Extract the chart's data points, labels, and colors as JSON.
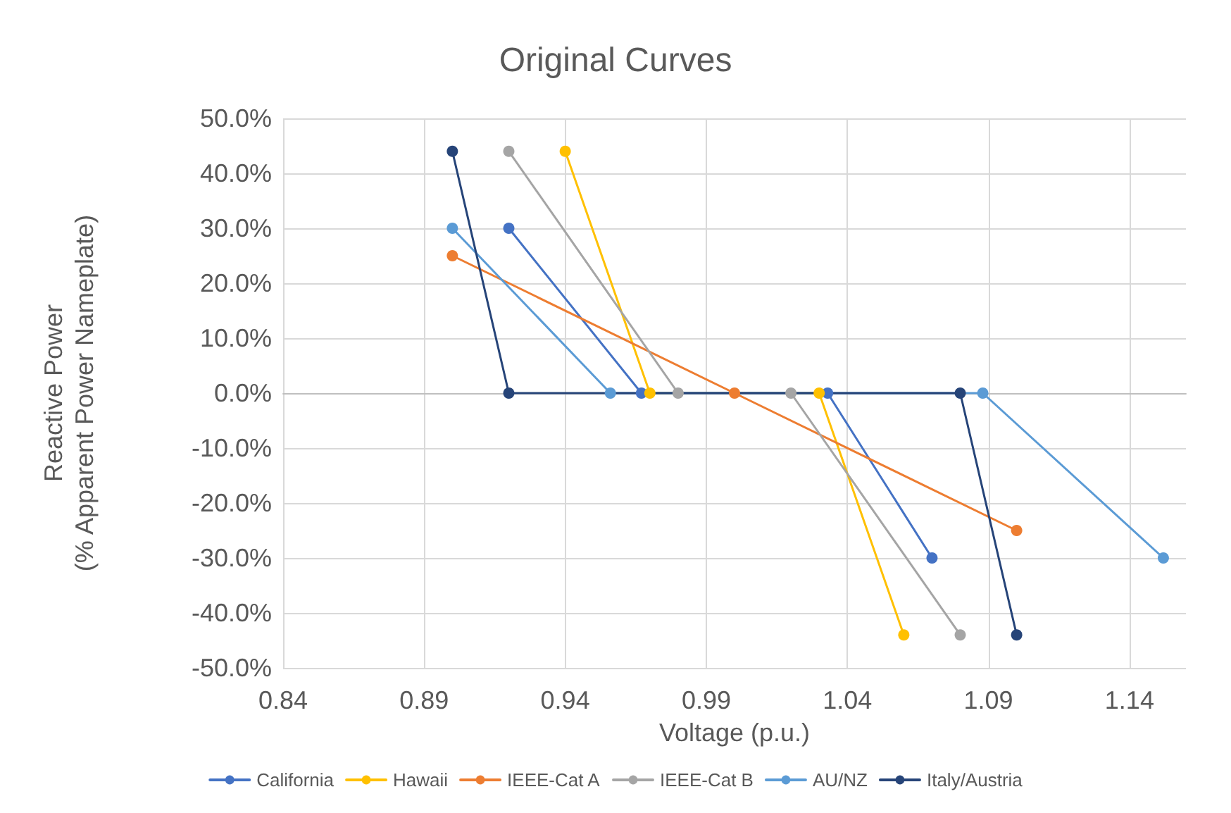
{
  "chart_data": {
    "type": "line",
    "title": "Original Curves",
    "xlabel": "Voltage (p.u.)",
    "ylabel": "Reactive Power\n(% Apparent Power Nameplate)",
    "xlim": [
      0.84,
      1.16
    ],
    "xticks": [
      0.84,
      0.89,
      0.94,
      0.99,
      1.04,
      1.09,
      1.14
    ],
    "ylim": [
      -50,
      50
    ],
    "yticks": [
      {
        "value": -50,
        "label": "-50.0%"
      },
      {
        "value": -40,
        "label": "-40.0%"
      },
      {
        "value": -30,
        "label": "-30.0%"
      },
      {
        "value": -20,
        "label": "-20.0%"
      },
      {
        "value": -10,
        "label": "-10.0%"
      },
      {
        "value": 0,
        "label": "0.0%"
      },
      {
        "value": 10,
        "label": "10.0%"
      },
      {
        "value": 20,
        "label": "20.0%"
      },
      {
        "value": 30,
        "label": "30.0%"
      },
      {
        "value": 40,
        "label": "40.0%"
      },
      {
        "value": 50,
        "label": "50.0%"
      }
    ],
    "grid": true,
    "legend": "bottom",
    "marker": "circle",
    "line_style": "solid",
    "series": [
      {
        "name": "California",
        "color": "#4472c4",
        "x": [
          0.92,
          0.967,
          1.033,
          1.07
        ],
        "values": [
          30,
          0,
          0,
          -30
        ]
      },
      {
        "name": "Hawaii",
        "color": "#ffc000",
        "x": [
          0.94,
          0.97,
          1.03,
          1.06
        ],
        "values": [
          44,
          0,
          0,
          -44
        ]
      },
      {
        "name": "IEEE-Cat A",
        "color": "#ed7d31",
        "x": [
          0.9,
          1.0,
          1.1
        ],
        "values": [
          25,
          0,
          -25
        ]
      },
      {
        "name": "IEEE-Cat B",
        "color": "#a5a5a5",
        "x": [
          0.92,
          0.98,
          1.02,
          1.08
        ],
        "values": [
          44,
          0,
          0,
          -44
        ]
      },
      {
        "name": "AU/NZ",
        "color": "#5b9bd5",
        "x": [
          0.9,
          0.956,
          1.088,
          1.152
        ],
        "values": [
          30,
          0,
          0,
          -30
        ]
      },
      {
        "name": "Italy/Austria",
        "color": "#264478",
        "x": [
          0.9,
          0.92,
          1.08,
          1.1
        ],
        "values": [
          44,
          0,
          0,
          -44
        ]
      }
    ]
  }
}
